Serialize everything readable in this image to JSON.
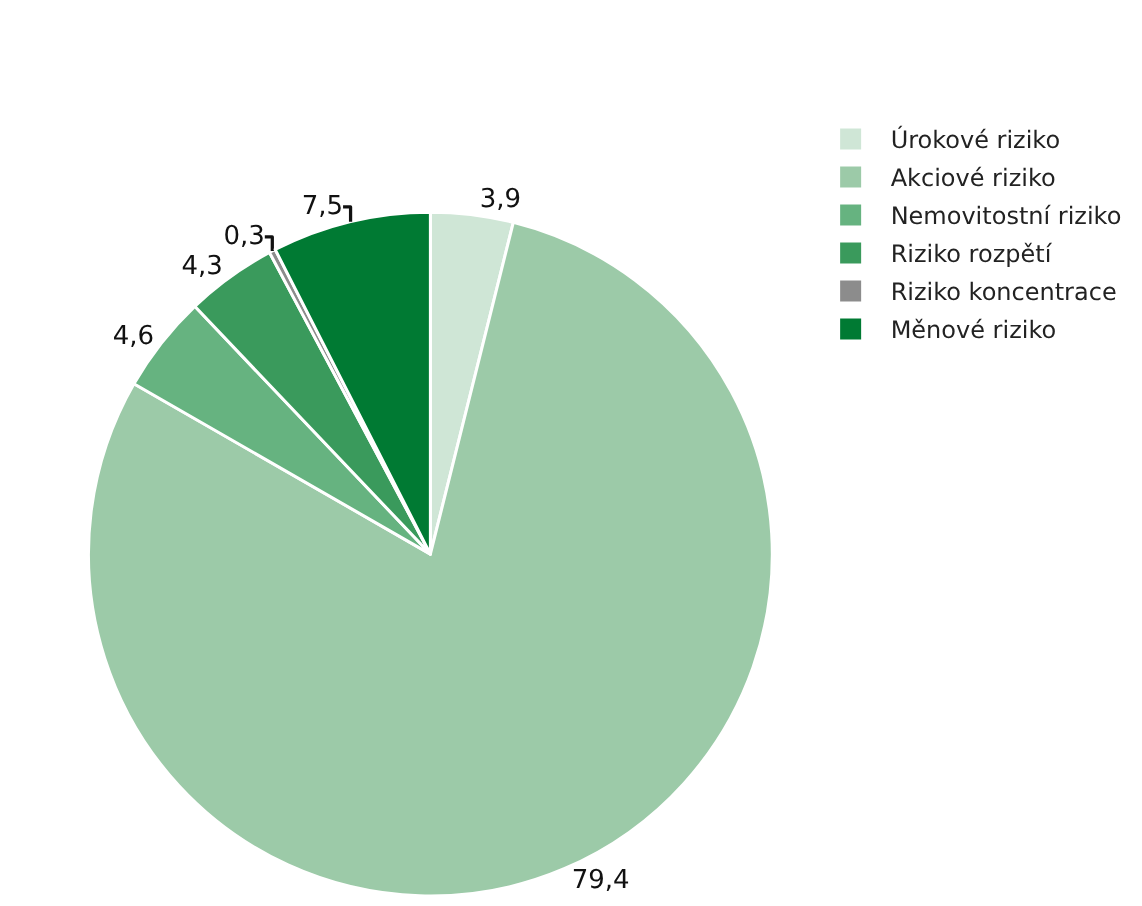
{
  "chart_data": {
    "type": "pie",
    "categories": [
      "Úrokové riziko",
      "Akciové riziko",
      "Nemovitostní riziko",
      "Riziko rozpětí",
      "Riziko koncentrace",
      "Měnové riziko"
    ],
    "values": [
      3.9,
      79.4,
      4.6,
      4.3,
      0.3,
      7.5
    ],
    "value_labels": [
      "3,9",
      "79,4",
      "4,6",
      "4,3",
      "0,3",
      "7,5"
    ],
    "colors": [
      "#cfe6d6",
      "#9ccaa8",
      "#66b380",
      "#3a9a5c",
      "#8c8c8c",
      "#007a33"
    ],
    "legend": "top right"
  }
}
